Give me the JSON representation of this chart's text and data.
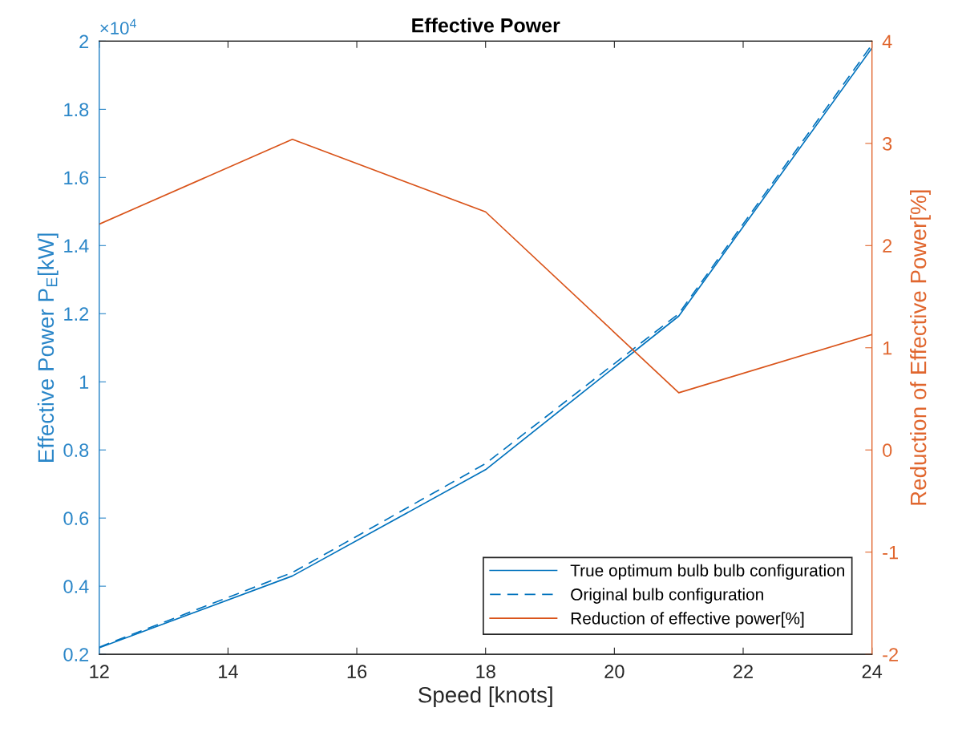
{
  "chart_data": {
    "type": "line",
    "title": "Effective Power",
    "xlabel": "Speed [knots]",
    "ylabel": "Effective Power P$_{E}$[kW]",
    "y2label": "Reduction of Effective Power[%]",
    "annotations": [
      "×10$^{4}$"
    ],
    "x": [
      12,
      15,
      18,
      21,
      24
    ],
    "series": [
      {
        "name": "True optimum bulb bulb configuration",
        "color": "#0072bd",
        "values": [
          0.219,
          0.43,
          0.742,
          1.193,
          1.98
        ],
        "line_style": "solid"
      },
      {
        "name": "Original bulb configuration",
        "color": "#0072bd",
        "values": [
          0.221,
          0.44,
          0.76,
          1.2,
          1.99
        ],
        "line_style": "dashed"
      },
      {
        "name": "Reduction of effective power[%]",
        "color": "#d95319",
        "values": [
          2.21,
          3.04,
          2.33,
          0.56,
          1.13
        ],
        "line_style": "solid",
        "axis": "y2"
      }
    ],
    "xlim": [
      12,
      24
    ],
    "xticks": [
      12,
      14,
      16,
      18,
      20,
      22,
      24
    ],
    "ylim": [
      0.2,
      2
    ],
    "yticks": [
      0.2,
      0.4,
      0.6,
      0.8,
      1,
      1.2,
      1.4,
      1.6,
      1.8,
      2
    ],
    "y2lim": [
      -2,
      4
    ],
    "y2ticks": [
      -2,
      -1,
      0,
      1,
      2,
      3,
      4
    ],
    "legend": "bottom right",
    "grid": false
  }
}
